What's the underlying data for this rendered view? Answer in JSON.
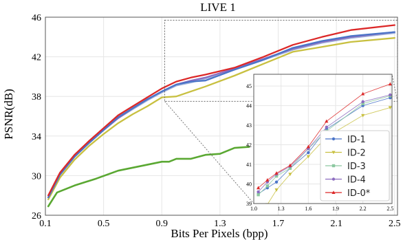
{
  "chart_data": [
    {
      "type": "line",
      "title": "LIVE 1",
      "xlabel": "Bits Per Pixels (bpp)",
      "ylabel": "PSNR(dB)",
      "xlim": [
        0.1,
        2.52
      ],
      "ylim": [
        26,
        46
      ],
      "xticks": [
        0.1,
        0.5,
        0.9,
        1.3,
        1.7,
        2.1,
        2.5
      ],
      "yticks": [
        26,
        30,
        34,
        38,
        42,
        46
      ],
      "xtick_labels": [
        "0.1",
        "0.5",
        "0.9",
        "1.3",
        "1.7",
        "2.1",
        "2.5"
      ],
      "ytick_labels": [
        "26",
        "30",
        "34",
        "38",
        "42",
        "46"
      ],
      "grid": true,
      "series": [
        {
          "color": "#5aa832",
          "x": [
            0.12,
            0.18,
            0.3,
            0.45,
            0.6,
            0.9,
            0.95,
            1.0,
            1.1,
            1.2,
            1.3,
            1.4,
            1.5
          ],
          "y": [
            26.9,
            28.3,
            29.0,
            29.7,
            30.5,
            31.4,
            31.4,
            31.7,
            31.7,
            32.1,
            32.2,
            32.8,
            32.9
          ]
        },
        {
          "color": "#c8c040",
          "x": [
            0.12,
            0.2,
            0.3,
            0.4,
            0.5,
            0.6,
            0.7,
            0.8,
            0.9,
            1.0,
            1.2,
            1.4,
            1.6,
            1.8,
            2.0,
            2.2,
            2.5
          ],
          "y": [
            27.6,
            29.8,
            31.6,
            33.0,
            34.2,
            35.3,
            36.2,
            37.0,
            37.9,
            38.0,
            39.0,
            40.1,
            41.3,
            42.5,
            43.0,
            43.5,
            43.9
          ]
        },
        {
          "color": "#a0b4dc",
          "x": [
            0.12,
            0.2,
            0.3,
            0.4,
            0.5,
            0.6,
            0.7,
            0.8,
            0.9,
            1.0,
            1.1,
            1.2,
            1.4,
            1.6,
            1.8,
            2.0,
            2.2,
            2.5
          ],
          "y": [
            27.8,
            30.1,
            31.9,
            33.3,
            34.6,
            35.8,
            36.7,
            37.6,
            38.4,
            39.1,
            39.4,
            39.8,
            40.7,
            41.7,
            42.7,
            43.4,
            43.9,
            44.4
          ]
        },
        {
          "color": "#8c6cc0",
          "x": [
            0.12,
            0.2,
            0.3,
            0.4,
            0.5,
            0.6,
            0.7,
            0.8,
            0.9,
            1.0,
            1.1,
            1.2,
            1.4,
            1.6,
            1.8,
            2.0,
            2.2,
            2.5
          ],
          "y": [
            27.8,
            30.1,
            31.9,
            33.3,
            34.6,
            35.8,
            36.8,
            37.7,
            38.5,
            39.2,
            39.6,
            39.9,
            40.8,
            41.8,
            42.8,
            43.5,
            44.0,
            44.5
          ]
        },
        {
          "color": "#4a74c8",
          "x": [
            0.12,
            0.2,
            0.3,
            0.4,
            0.5,
            0.6,
            0.7,
            0.8,
            0.9,
            1.0,
            1.1,
            1.2,
            1.4,
            1.6,
            1.8,
            2.0,
            2.2,
            2.5
          ],
          "y": [
            27.8,
            30.1,
            31.9,
            33.3,
            34.6,
            35.9,
            36.8,
            37.7,
            38.5,
            39.2,
            39.5,
            39.6,
            40.7,
            41.7,
            42.9,
            43.6,
            44.1,
            44.5
          ]
        },
        {
          "color": "#dc2828",
          "x": [
            0.12,
            0.2,
            0.3,
            0.4,
            0.5,
            0.6,
            0.7,
            0.8,
            0.9,
            1.0,
            1.1,
            1.2,
            1.4,
            1.6,
            1.8,
            2.0,
            2.2,
            2.5
          ],
          "y": [
            28.0,
            30.3,
            32.1,
            33.5,
            34.8,
            36.1,
            37.0,
            37.9,
            38.8,
            39.5,
            39.9,
            40.2,
            40.9,
            42.0,
            43.2,
            44.0,
            44.7,
            45.2
          ]
        }
      ]
    },
    {
      "type": "line",
      "xlim": [
        1.0,
        2.52
      ],
      "ylim": [
        39,
        45.6
      ],
      "xticks": [
        1.0,
        1.3,
        1.6,
        1.9,
        2.2,
        2.5
      ],
      "yticks": [
        39,
        40,
        41,
        42,
        43,
        44,
        45
      ],
      "xtick_labels": [
        "1.0",
        "1.3",
        "1.6",
        "1.9",
        "2.2",
        "2.5"
      ],
      "ytick_labels": [
        "39",
        "40",
        "41",
        "42",
        "43",
        "44",
        "45"
      ],
      "grid": true,
      "legend": "bottom-right",
      "x": [
        1.05,
        1.15,
        1.25,
        1.4,
        1.6,
        1.8,
        2.2,
        2.5
      ],
      "series": [
        {
          "name": "ID-1",
          "color": "#4a74c8",
          "marker": "circle",
          "values": [
            39.5,
            39.8,
            40.1,
            40.8,
            41.6,
            42.8,
            44.0,
            44.4
          ]
        },
        {
          "name": "ID-2",
          "color": "#c8c040",
          "marker": "triangle-down",
          "values": [
            38.6,
            38.95,
            39.7,
            40.5,
            41.4,
            42.4,
            43.5,
            43.9
          ]
        },
        {
          "name": "ID-3",
          "color": "#8cc8a0",
          "marker": "square",
          "values": [
            39.45,
            39.9,
            40.4,
            40.8,
            41.8,
            42.7,
            44.1,
            44.5
          ]
        },
        {
          "name": "ID-4",
          "color": "#8c6cc0",
          "marker": "circle",
          "values": [
            39.6,
            40.1,
            40.5,
            40.9,
            41.8,
            42.9,
            44.2,
            44.55
          ]
        },
        {
          "name": "ID-0*",
          "color": "#dc2828",
          "marker": "triangle-up",
          "values": [
            39.8,
            40.2,
            40.55,
            40.95,
            41.9,
            43.2,
            44.6,
            45.1
          ]
        }
      ]
    }
  ]
}
